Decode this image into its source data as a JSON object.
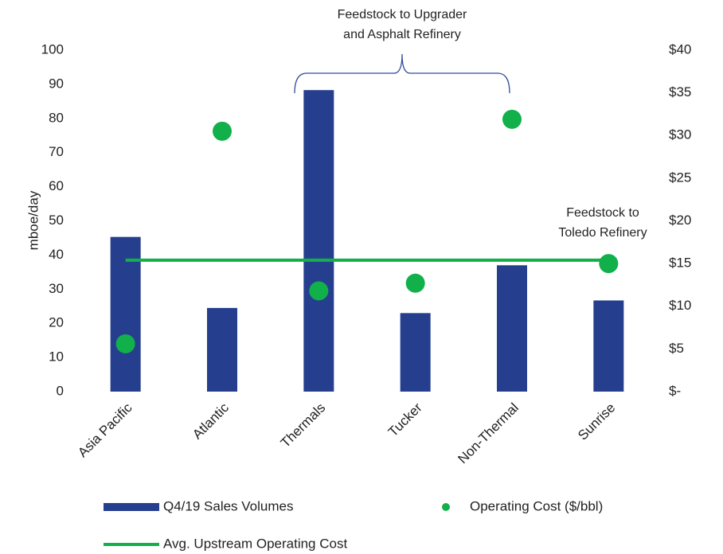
{
  "chart_data": {
    "type": "combo",
    "categories": [
      "Asia Pacific",
      "Atlantic",
      "Thermals",
      "Tucker",
      "Non-Thermal",
      "Sunrise"
    ],
    "series": [
      {
        "name": "Q4/19 Sales Volumes",
        "type": "bar",
        "color": "#253f8e",
        "values": [
          45.3,
          24.5,
          88.3,
          23,
          37,
          26.7
        ]
      },
      {
        "name": "Operating Cost ($/bbl)",
        "type": "scatter",
        "axis": "y2",
        "color": "#12b04a",
        "values": [
          5.6,
          30.5,
          11.8,
          12.7,
          31.9,
          15
        ]
      },
      {
        "name": "Avg. Upstream Operating Cost",
        "type": "line",
        "axis": "y2",
        "color": "#12b04a",
        "values": [
          15.4,
          15.4,
          15.4,
          15.4,
          15.4,
          15.4
        ]
      }
    ],
    "y_label": "mboe/day",
    "ylim": [
      0,
      100
    ],
    "yticks": [
      0,
      10,
      20,
      30,
      40,
      50,
      60,
      70,
      80,
      90,
      100
    ],
    "y2lim": [
      0,
      40
    ],
    "y2ticks": [
      {
        "value": 0,
        "label": "$-"
      },
      {
        "value": 5,
        "label": "$5"
      },
      {
        "value": 10,
        "label": "$10"
      },
      {
        "value": 15,
        "label": "$15"
      },
      {
        "value": 20,
        "label": "$20"
      },
      {
        "value": 25,
        "label": "$25"
      },
      {
        "value": 30,
        "label": "$30"
      },
      {
        "value": 35,
        "label": "$35"
      },
      {
        "value": 40,
        "label": "$40"
      }
    ],
    "annotations": [
      {
        "lines": [
          "Feedstock to Upgrader",
          "and Asphalt Refinery"
        ]
      },
      {
        "lines": [
          "Feedstock to",
          "Toledo Refinery"
        ]
      }
    ]
  }
}
